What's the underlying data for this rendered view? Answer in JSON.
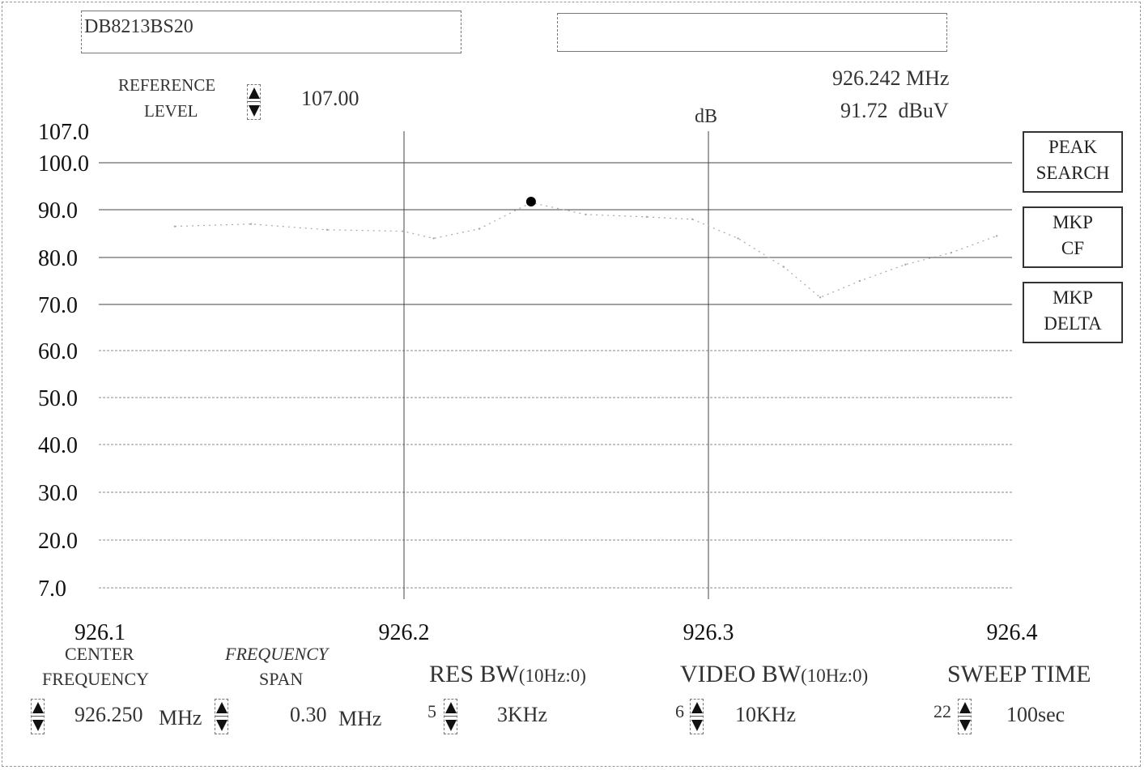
{
  "header": {
    "trace_name": "DB8213BS20",
    "second_field": ""
  },
  "reference_level": {
    "label_line1": "REFERENCE",
    "label_line2": "LEVEL",
    "value": "107.00"
  },
  "marker": {
    "frequency": "926.242 MHz",
    "level": "91.72  dBuV"
  },
  "side_buttons": {
    "peak_search": [
      "PEAK",
      "SEARCH"
    ],
    "mkp_cf": [
      "MKP",
      "CF"
    ],
    "mkp_delta": [
      "MKP",
      "DELTA"
    ]
  },
  "controls": {
    "center_frequency": {
      "label_line1": "CENTER",
      "label_line2": "FREQUENCY",
      "value": "926.250",
      "unit": "MHz"
    },
    "frequency_span": {
      "label_line1": "FREQUENCY",
      "label_line2": "SPAN",
      "value": "0.30",
      "unit": "MHz"
    },
    "res_bw": {
      "label_main": "RES BW",
      "label_sub": "(10Hz:0)",
      "index": "5",
      "value": "3KHz"
    },
    "video_bw": {
      "label_main": "VIDEO BW",
      "label_sub": "(10Hz:0)",
      "index": "6",
      "value": "10KHz"
    },
    "sweep_time": {
      "label_main": "SWEEP TIME",
      "index": "22",
      "value": "100sec"
    }
  },
  "colors": {
    "trace": "#a8a8a8",
    "marker": "#000000",
    "grid_solid": "#444444",
    "grid_dotted": "#8a8a8a"
  },
  "chart_data": {
    "type": "line",
    "xlabel": "",
    "ylabel": "dB",
    "x_ticks": [
      "926.1",
      "926.2",
      "926.3",
      "926.4"
    ],
    "y_ticks": [
      "107.0",
      "100.0",
      "90.0",
      "80.0",
      "70.0",
      "60.0",
      "50.0",
      "40.0",
      "30.0",
      "20.0",
      "7.0"
    ],
    "xlim": [
      926.1,
      926.4
    ],
    "ylim": [
      7.0,
      107.0
    ],
    "grid": true,
    "series": [
      {
        "x": [
          926.125,
          926.15,
          926.175,
          926.2,
          926.21,
          926.225,
          926.242,
          926.26,
          926.28,
          926.295,
          926.31,
          926.325,
          926.337,
          926.35,
          926.365,
          926.38,
          926.395
        ],
        "values": [
          86.5,
          87.0,
          85.8,
          85.5,
          84.0,
          86.0,
          91.5,
          89.0,
          88.5,
          88.0,
          84.0,
          78.0,
          71.5,
          75.0,
          78.5,
          81.0,
          84.5
        ]
      }
    ],
    "marker_point": {
      "x": 926.242,
      "y": 91.72
    }
  }
}
